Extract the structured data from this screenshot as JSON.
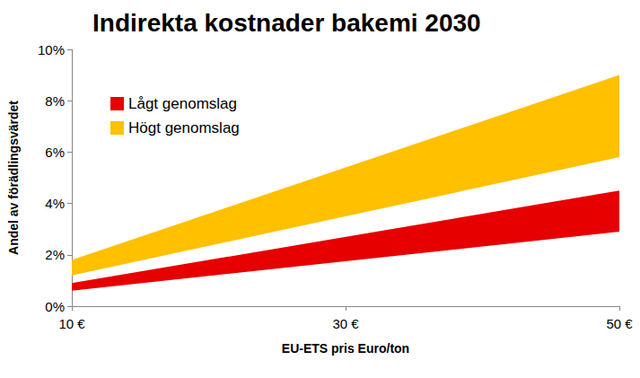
{
  "chart_data": {
    "type": "band",
    "title": "Indirekta kostnader bakemi 2030",
    "xlabel": "EU-ETS pris Euro/ton",
    "ylabel": "Andel av förädlingsvärdet",
    "x": [
      10,
      50
    ],
    "series": [
      {
        "name": "Lågt genomslag",
        "color": "#e60000",
        "values": [
          0.9,
          4.5
        ],
        "lower": [
          0.6,
          2.9
        ]
      },
      {
        "name": "Högt genomslag",
        "color": "#ffc000",
        "values": [
          1.8,
          9.0
        ],
        "lower": [
          1.2,
          5.8
        ]
      }
    ],
    "xlim": [
      10,
      50
    ],
    "xticks": [
      {
        "value": 10,
        "label": "10 €"
      },
      {
        "value": 30,
        "label": "30 €"
      },
      {
        "value": 50,
        "label": "50 €"
      }
    ],
    "ylim": [
      0,
      10
    ],
    "yticks": [
      {
        "value": 0,
        "label": "0%"
      },
      {
        "value": 2,
        "label": "2%"
      },
      {
        "value": 4,
        "label": "4%"
      },
      {
        "value": 6,
        "label": "6%"
      },
      {
        "value": 8,
        "label": "8%"
      },
      {
        "value": 10,
        "label": "10%"
      }
    ],
    "grid": false,
    "legend": "upper left"
  }
}
